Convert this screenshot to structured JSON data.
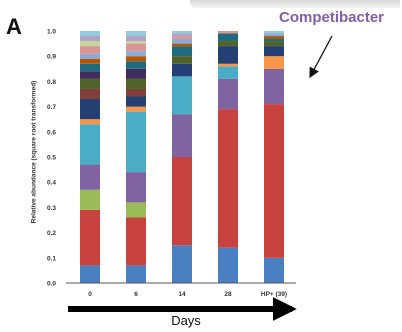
{
  "panel_label": "A",
  "annotation": "Competibacter",
  "chart_data": {
    "type": "bar",
    "stacked": true,
    "categories": [
      "0",
      "6",
      "14",
      "28",
      "HP+ (39)"
    ],
    "ylabel": "Relative abundance (square root transformed)",
    "xlabel": "Days",
    "ylim": [
      0,
      1.0
    ],
    "yticks": [
      "0.0",
      "0.1",
      "0.2",
      "0.3",
      "0.4",
      "0.5",
      "0.6",
      "0.7",
      "0.8",
      "0.9",
      "1.0"
    ],
    "grid": false,
    "highlighted_series": "Competibacter",
    "highlighted_category": "HP+ (39)",
    "series": [
      {
        "color": "#4a7fc1",
        "values": [
          0.07,
          0.07,
          0.15,
          0.14,
          0.1
        ]
      },
      {
        "color": "#c8433f",
        "values": [
          0.22,
          0.19,
          0.35,
          0.55,
          0.61
        ]
      },
      {
        "color": "#9bbb59",
        "values": [
          0.08,
          0.06,
          0.0,
          0.0,
          0.0
        ]
      },
      {
        "color": "#8064a2",
        "values": [
          0.1,
          0.12,
          0.17,
          0.12,
          0.14
        ]
      },
      {
        "color": "#4bacc6",
        "values": [
          0.16,
          0.24,
          0.15,
          0.05,
          0.0
        ]
      },
      {
        "color": "#f79646",
        "values": [
          0.02,
          0.02,
          0.0,
          0.01,
          0.05
        ]
      },
      {
        "color": "#243f73",
        "values": [
          0.08,
          0.04,
          0.05,
          0.07,
          0.04
        ]
      },
      {
        "color": "#7f3f3d",
        "values": [
          0.04,
          0.03,
          0.0,
          0.0,
          0.0
        ]
      },
      {
        "color": "#4f6228",
        "values": [
          0.04,
          0.04,
          0.03,
          0.02,
          0.02
        ]
      },
      {
        "color": "#3f2e5c",
        "values": [
          0.03,
          0.04,
          0.0,
          0.0,
          0.0
        ]
      },
      {
        "color": "#206a7e",
        "values": [
          0.03,
          0.03,
          0.04,
          0.03,
          0.01
        ]
      },
      {
        "color": "#b65708",
        "values": [
          0.02,
          0.02,
          0.01,
          0.0,
          0.01
        ]
      },
      {
        "color": "#8fa9d6",
        "values": [
          0.02,
          0.02,
          0.02,
          0.0,
          0.01
        ]
      },
      {
        "color": "#d99694",
        "values": [
          0.03,
          0.03,
          0.01,
          0.01,
          0.0
        ]
      },
      {
        "color": "#c3d69b",
        "values": [
          0.02,
          0.01,
          0.0,
          0.0,
          0.0
        ]
      },
      {
        "color": "#b3a2c7",
        "values": [
          0.02,
          0.02,
          0.01,
          0.0,
          0.0
        ]
      },
      {
        "color": "#92cddc",
        "values": [
          0.02,
          0.02,
          0.01,
          0.0,
          0.01
        ]
      }
    ]
  }
}
